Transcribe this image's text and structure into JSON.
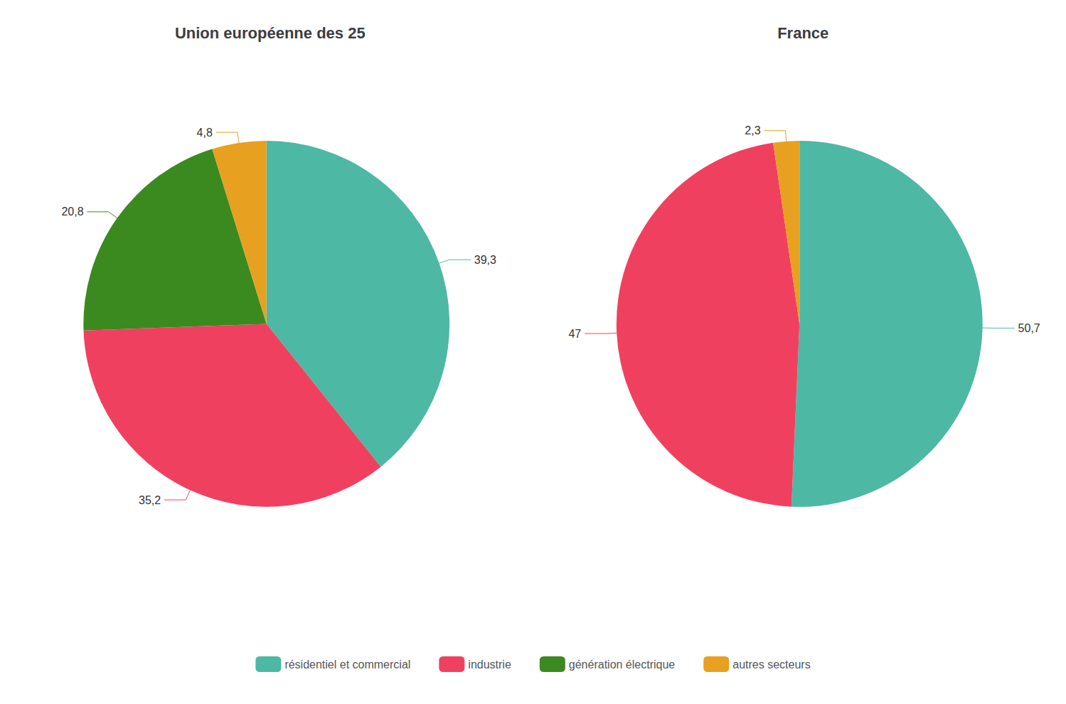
{
  "chart_data": [
    {
      "type": "pie",
      "title": "Union européenne des 25",
      "categories": [
        "résidentiel et commercial",
        "industrie",
        "génération électrique",
        "autres secteurs"
      ],
      "values": [
        39.3,
        35.2,
        20.8,
        4.8
      ],
      "value_labels": [
        "39,3",
        "35,2",
        "20,8",
        "4,8"
      ],
      "colors": [
        "#4db8a4",
        "#f04060",
        "#3a8a20",
        "#e8a020"
      ],
      "data_labels": true,
      "legend": "bottom"
    },
    {
      "type": "pie",
      "title": "France",
      "categories": [
        "résidentiel et commercial",
        "industrie",
        "autres secteurs"
      ],
      "values": [
        50.7,
        47.0,
        2.3
      ],
      "value_labels": [
        "50,7",
        "47",
        "2,3"
      ],
      "colors": [
        "#4db8a4",
        "#f04060",
        "#e8a020"
      ],
      "data_labels": true,
      "legend": "bottom"
    }
  ]
}
